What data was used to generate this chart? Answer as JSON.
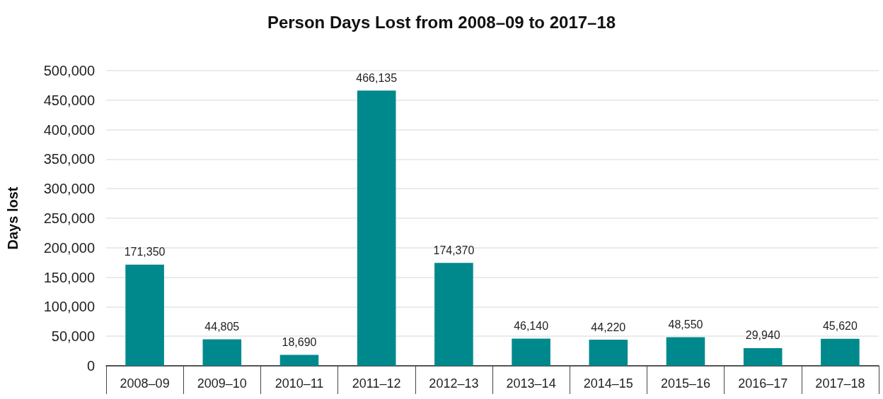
{
  "chart_data": {
    "type": "bar",
    "title": "Person Days Lost from 2008–09 to 2017–18",
    "ylabel": "Days lost",
    "categories": [
      "2008–09",
      "2009–10",
      "2010–11",
      "2011–12",
      "2012–13",
      "2013–14",
      "2014–15",
      "2015–16",
      "2016–17",
      "2017–18"
    ],
    "values": [
      171350,
      44805,
      18690,
      466135,
      174370,
      46140,
      44220,
      48550,
      29940,
      45620
    ],
    "value_labels": [
      "171,350",
      "44,805",
      "18,690",
      "466,135",
      "174,370",
      "46,140",
      "44,220",
      "48,550",
      "29,940",
      "45,620"
    ],
    "color": "#00898d",
    "ylim": [
      0,
      500000
    ],
    "yticks": [
      0,
      {
        "value": 50000,
        "label": "50,000"
      },
      {
        "value": 100000,
        "label": "100,000"
      },
      {
        "value": 150000,
        "label": "150,000"
      },
      {
        "value": 200000,
        "label": "200,000"
      },
      {
        "value": 250000,
        "label": "250,000"
      },
      {
        "value": 300000,
        "label": "300,000"
      },
      {
        "value": 350000,
        "label": "350,000"
      },
      {
        "value": 400000,
        "label": "400,000"
      },
      {
        "value": 450000,
        "label": "450,000"
      },
      {
        "value": 500000,
        "label": "500,000"
      }
    ],
    "grid": "y"
  }
}
